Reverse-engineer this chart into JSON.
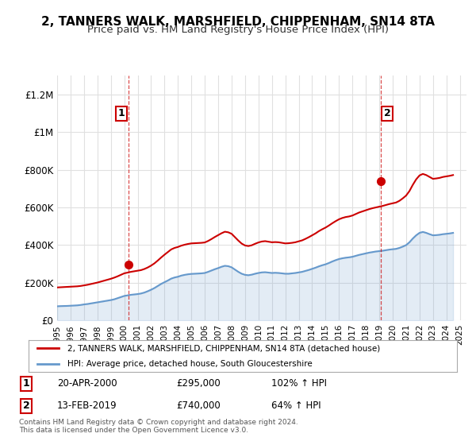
{
  "title": "2, TANNERS WALK, MARSHFIELD, CHIPPENHAM, SN14 8TA",
  "subtitle": "Price paid vs. HM Land Registry's House Price Index (HPI)",
  "title_fontsize": 11,
  "subtitle_fontsize": 9.5,
  "ylabel_ticks": [
    "£0",
    "£200K",
    "£400K",
    "£600K",
    "£800K",
    "£1M",
    "£1.2M"
  ],
  "ytick_values": [
    0,
    200000,
    400000,
    600000,
    800000,
    1000000,
    1200000
  ],
  "ylim": [
    0,
    1300000
  ],
  "xlim_start": 1995.0,
  "xlim_end": 2025.5,
  "background_color": "#ffffff",
  "grid_color": "#e0e0e0",
  "sale1_x": 2000.3,
  "sale1_y": 295000,
  "sale2_x": 2019.1,
  "sale2_y": 740000,
  "sale_color": "#cc0000",
  "hpi_color": "#6699cc",
  "annotation_color": "#cc0000",
  "legend_label_red": "2, TANNERS WALK, MARSHFIELD, CHIPPENHAM, SN14 8TA (detached house)",
  "legend_label_blue": "HPI: Average price, detached house, South Gloucestershire",
  "table_entry1": "1    20-APR-2000        £295,000        102% ↑ HPI",
  "table_entry2": "2    13-FEB-2019        £740,000        64% ↑ HPI",
  "footer": "Contains HM Land Registry data © Crown copyright and database right 2024.\nThis data is licensed under the Open Government Licence v3.0.",
  "hpi_data_x": [
    1995.0,
    1995.25,
    1995.5,
    1995.75,
    1996.0,
    1996.25,
    1996.5,
    1996.75,
    1997.0,
    1997.25,
    1997.5,
    1997.75,
    1998.0,
    1998.25,
    1998.5,
    1998.75,
    1999.0,
    1999.25,
    1999.5,
    1999.75,
    2000.0,
    2000.25,
    2000.5,
    2000.75,
    2001.0,
    2001.25,
    2001.5,
    2001.75,
    2002.0,
    2002.25,
    2002.5,
    2002.75,
    2003.0,
    2003.25,
    2003.5,
    2003.75,
    2004.0,
    2004.25,
    2004.5,
    2004.75,
    2005.0,
    2005.25,
    2005.5,
    2005.75,
    2006.0,
    2006.25,
    2006.5,
    2006.75,
    2007.0,
    2007.25,
    2007.5,
    2007.75,
    2008.0,
    2008.25,
    2008.5,
    2008.75,
    2009.0,
    2009.25,
    2009.5,
    2009.75,
    2010.0,
    2010.25,
    2010.5,
    2010.75,
    2011.0,
    2011.25,
    2011.5,
    2011.75,
    2012.0,
    2012.25,
    2012.5,
    2012.75,
    2013.0,
    2013.25,
    2013.5,
    2013.75,
    2014.0,
    2014.25,
    2014.5,
    2014.75,
    2015.0,
    2015.25,
    2015.5,
    2015.75,
    2016.0,
    2016.25,
    2016.5,
    2016.75,
    2017.0,
    2017.25,
    2017.5,
    2017.75,
    2018.0,
    2018.25,
    2018.5,
    2018.75,
    2019.0,
    2019.25,
    2019.5,
    2019.75,
    2020.0,
    2020.25,
    2020.5,
    2020.75,
    2021.0,
    2021.25,
    2021.5,
    2021.75,
    2022.0,
    2022.25,
    2022.5,
    2022.75,
    2023.0,
    2023.25,
    2023.5,
    2023.75,
    2024.0,
    2024.25,
    2024.5
  ],
  "hpi_data_y": [
    75000,
    76000,
    76500,
    77000,
    78000,
    79000,
    80000,
    82000,
    85000,
    87000,
    90000,
    93000,
    96000,
    99000,
    102000,
    105000,
    108000,
    112000,
    118000,
    124000,
    130000,
    133000,
    136000,
    138000,
    140000,
    143000,
    148000,
    155000,
    163000,
    172000,
    183000,
    194000,
    203000,
    212000,
    222000,
    228000,
    232000,
    238000,
    242000,
    245000,
    247000,
    248000,
    249000,
    250000,
    252000,
    258000,
    265000,
    272000,
    278000,
    285000,
    290000,
    288000,
    282000,
    270000,
    258000,
    248000,
    242000,
    240000,
    243000,
    248000,
    252000,
    255000,
    256000,
    254000,
    252000,
    253000,
    252000,
    250000,
    248000,
    248000,
    250000,
    252000,
    255000,
    258000,
    263000,
    268000,
    274000,
    280000,
    287000,
    293000,
    298000,
    305000,
    313000,
    320000,
    326000,
    330000,
    333000,
    335000,
    338000,
    343000,
    348000,
    352000,
    356000,
    360000,
    363000,
    366000,
    368000,
    370000,
    373000,
    376000,
    378000,
    380000,
    385000,
    392000,
    400000,
    415000,
    435000,
    452000,
    465000,
    470000,
    465000,
    458000,
    452000,
    453000,
    455000,
    458000,
    460000,
    462000,
    465000
  ],
  "red_data_x": [
    1995.0,
    1995.25,
    1995.5,
    1995.75,
    1996.0,
    1996.25,
    1996.5,
    1996.75,
    1997.0,
    1997.25,
    1997.5,
    1997.75,
    1998.0,
    1998.25,
    1998.5,
    1998.75,
    1999.0,
    1999.25,
    1999.5,
    1999.75,
    2000.0,
    2000.25,
    2000.5,
    2000.75,
    2001.0,
    2001.25,
    2001.5,
    2001.75,
    2002.0,
    2002.25,
    2002.5,
    2002.75,
    2003.0,
    2003.25,
    2003.5,
    2003.75,
    2004.0,
    2004.25,
    2004.5,
    2004.75,
    2005.0,
    2005.25,
    2005.5,
    2005.75,
    2006.0,
    2006.25,
    2006.5,
    2006.75,
    2007.0,
    2007.25,
    2007.5,
    2007.75,
    2008.0,
    2008.25,
    2008.5,
    2008.75,
    2009.0,
    2009.25,
    2009.5,
    2009.75,
    2010.0,
    2010.25,
    2010.5,
    2010.75,
    2011.0,
    2011.25,
    2011.5,
    2011.75,
    2012.0,
    2012.25,
    2012.5,
    2012.75,
    2013.0,
    2013.25,
    2013.5,
    2013.75,
    2014.0,
    2014.25,
    2014.5,
    2014.75,
    2015.0,
    2015.25,
    2015.5,
    2015.75,
    2016.0,
    2016.25,
    2016.5,
    2016.75,
    2017.0,
    2017.25,
    2017.5,
    2017.75,
    2018.0,
    2018.25,
    2018.5,
    2018.75,
    2019.0,
    2019.25,
    2019.5,
    2019.75,
    2020.0,
    2020.25,
    2020.5,
    2020.75,
    2021.0,
    2021.25,
    2021.5,
    2021.75,
    2022.0,
    2022.25,
    2022.5,
    2022.75,
    2023.0,
    2023.25,
    2023.5,
    2023.75,
    2024.0,
    2024.25,
    2024.5
  ],
  "red_data_y": [
    175000,
    176000,
    177000,
    178000,
    179000,
    180000,
    181000,
    183000,
    186000,
    189000,
    193000,
    197000,
    201000,
    206000,
    211000,
    216000,
    221000,
    227000,
    234000,
    242000,
    250000,
    254000,
    258000,
    261000,
    264000,
    267000,
    273000,
    281000,
    291000,
    303000,
    318000,
    334000,
    349000,
    363000,
    377000,
    385000,
    390000,
    397000,
    402000,
    406000,
    409000,
    410000,
    411000,
    412000,
    414000,
    422000,
    432000,
    443000,
    453000,
    463000,
    471000,
    468000,
    460000,
    442000,
    424000,
    408000,
    398000,
    395000,
    399000,
    407000,
    414000,
    419000,
    421000,
    418000,
    415000,
    416000,
    415000,
    412000,
    409000,
    410000,
    412000,
    415000,
    420000,
    425000,
    433000,
    442000,
    452000,
    462000,
    474000,
    484000,
    493000,
    504000,
    516000,
    527000,
    537000,
    544000,
    549000,
    552000,
    557000,
    565000,
    573000,
    579000,
    585000,
    591000,
    596000,
    600000,
    604000,
    608000,
    613000,
    618000,
    622000,
    626000,
    635000,
    648000,
    663000,
    687000,
    720000,
    749000,
    770000,
    778000,
    772000,
    762000,
    752000,
    754000,
    757000,
    762000,
    765000,
    768000,
    772000
  ],
  "xtick_years": [
    1995,
    1996,
    1997,
    1998,
    1999,
    2000,
    2001,
    2002,
    2003,
    2004,
    2005,
    2006,
    2007,
    2008,
    2009,
    2010,
    2011,
    2012,
    2013,
    2014,
    2015,
    2016,
    2017,
    2018,
    2019,
    2020,
    2021,
    2022,
    2023,
    2024,
    2025
  ]
}
